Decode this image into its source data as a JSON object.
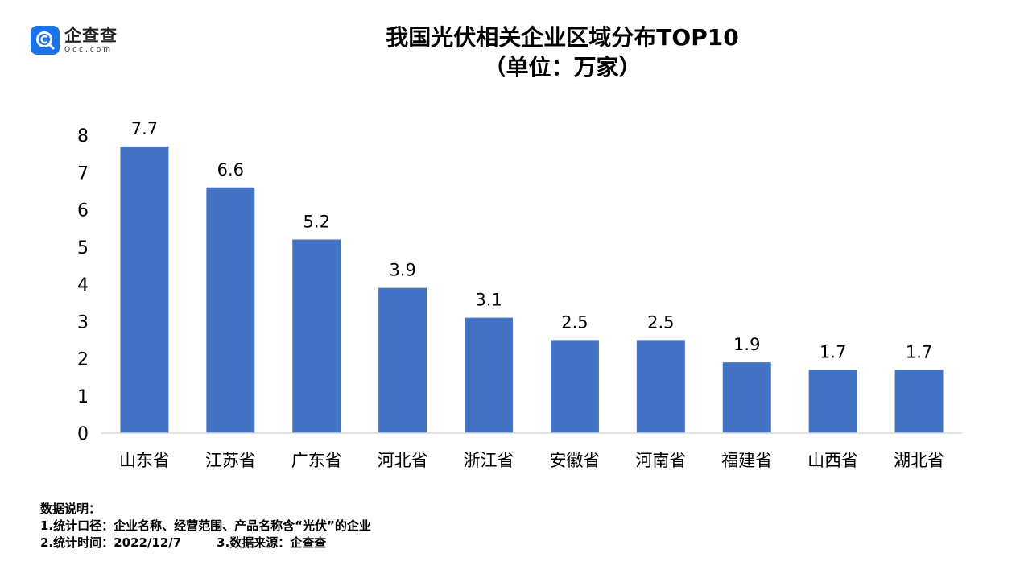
{
  "brand": {
    "name": "企查查",
    "domain": "Qcc.com",
    "colors": {
      "logo": "#1a73e8"
    }
  },
  "title": "我国光伏相关企业区域分布TOP10",
  "subtitle": "（单位：万家）",
  "chart_data": {
    "type": "bar",
    "categories": [
      "山东省",
      "江苏省",
      "广东省",
      "河北省",
      "浙江省",
      "安徽省",
      "河南省",
      "福建省",
      "山西省",
      "湖北省"
    ],
    "values": [
      7.7,
      6.6,
      5.2,
      3.9,
      3.1,
      2.5,
      2.5,
      1.9,
      1.7,
      1.7
    ],
    "value_labels": [
      "7.7",
      "6.6",
      "5.2",
      "3.9",
      "3.1",
      "2.5",
      "2.5",
      "1.9",
      "1.7",
      "1.7"
    ],
    "ylim": [
      0,
      8
    ],
    "yticks": [
      "0",
      "1",
      "2",
      "3",
      "4",
      "5",
      "6",
      "7",
      "8"
    ],
    "grid": false,
    "bar_color": "#4472c4"
  },
  "notes": {
    "heading": "数据说明：",
    "line1": "1.统计口径：企业名称、经营范围、产品名称含“光伏”的企业",
    "line2a": "2.统计时间：2022/12/7",
    "line2b": "3.数据来源：企查查"
  }
}
